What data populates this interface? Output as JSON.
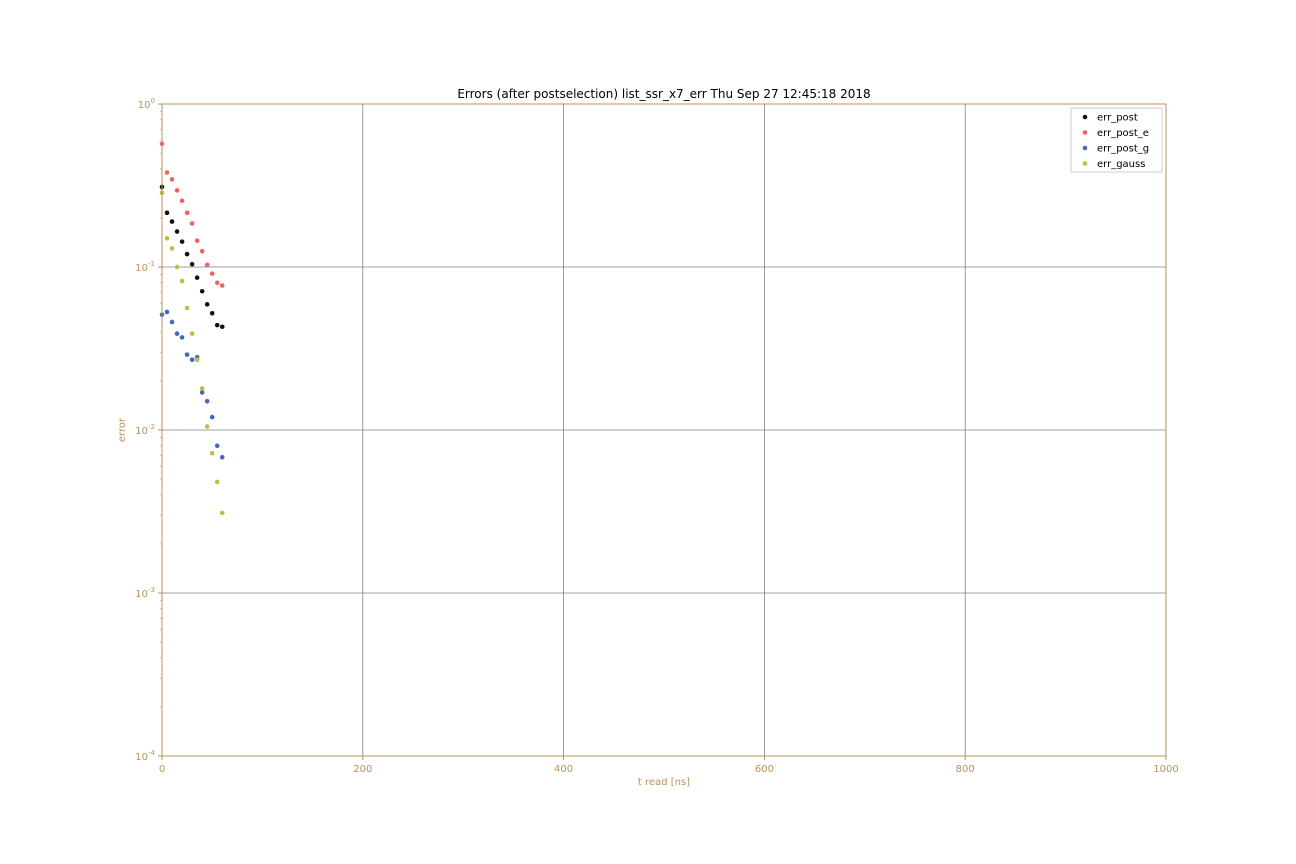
{
  "chart_data": {
    "type": "scatter",
    "title": "Errors (after postselection) list_ssr_x7_err  Thu Sep 27 12:45:18 2018",
    "xlabel": "t read [ns]",
    "ylabel": "error",
    "xlim": [
      0,
      1000
    ],
    "ylim": [
      0.0001,
      1
    ],
    "yscale": "log",
    "grid": true,
    "legend_position": "top-right",
    "x_ticks": [
      {
        "value": 0,
        "label": "0"
      },
      {
        "value": 200,
        "label": "200"
      },
      {
        "value": 400,
        "label": "400"
      },
      {
        "value": 600,
        "label": "600"
      },
      {
        "value": 800,
        "label": "800"
      },
      {
        "value": 1000,
        "label": "1000"
      }
    ],
    "y_ticks": [
      {
        "value": 1,
        "base": "10",
        "exp": "0"
      },
      {
        "value": 0.1,
        "base": "10",
        "exp": "-1"
      },
      {
        "value": 0.01,
        "base": "10",
        "exp": "-2"
      },
      {
        "value": 0.001,
        "base": "10",
        "exp": "-3"
      },
      {
        "value": 0.0001,
        "base": "10",
        "exp": "-4"
      }
    ],
    "colors": {
      "axis": "#b8925a",
      "grid": "#808080"
    },
    "series": [
      {
        "name": "err_post",
        "color": "#111111",
        "x": [
          0,
          5,
          10,
          15,
          20,
          25,
          30,
          35,
          40,
          45,
          50,
          55,
          60
        ],
        "y": [
          0.31,
          0.215,
          0.19,
          0.165,
          0.143,
          0.12,
          0.104,
          0.086,
          0.071,
          0.059,
          0.052,
          0.044,
          0.043
        ]
      },
      {
        "name": "err_post_e",
        "color": "#f06060",
        "x": [
          0,
          5,
          10,
          15,
          20,
          25,
          30,
          35,
          40,
          45,
          50,
          55,
          60
        ],
        "y": [
          0.57,
          0.38,
          0.345,
          0.295,
          0.255,
          0.215,
          0.185,
          0.145,
          0.125,
          0.103,
          0.091,
          0.08,
          0.077
        ]
      },
      {
        "name": "err_post_g",
        "color": "#4466bb",
        "x": [
          0,
          5,
          10,
          15,
          20,
          25,
          30,
          35,
          40,
          45,
          50,
          55,
          60
        ],
        "y": [
          0.051,
          0.053,
          0.046,
          0.039,
          0.037,
          0.029,
          0.027,
          0.028,
          0.017,
          0.015,
          0.012,
          0.008,
          0.0068
        ]
      },
      {
        "name": "err_gauss",
        "color": "#b8c040",
        "x": [
          0,
          5,
          10,
          15,
          20,
          25,
          30,
          35,
          40,
          45,
          50,
          55,
          60
        ],
        "y": [
          0.285,
          0.15,
          0.13,
          0.1,
          0.082,
          0.056,
          0.039,
          0.027,
          0.018,
          0.0105,
          0.0072,
          0.0048,
          0.0031
        ]
      }
    ]
  }
}
